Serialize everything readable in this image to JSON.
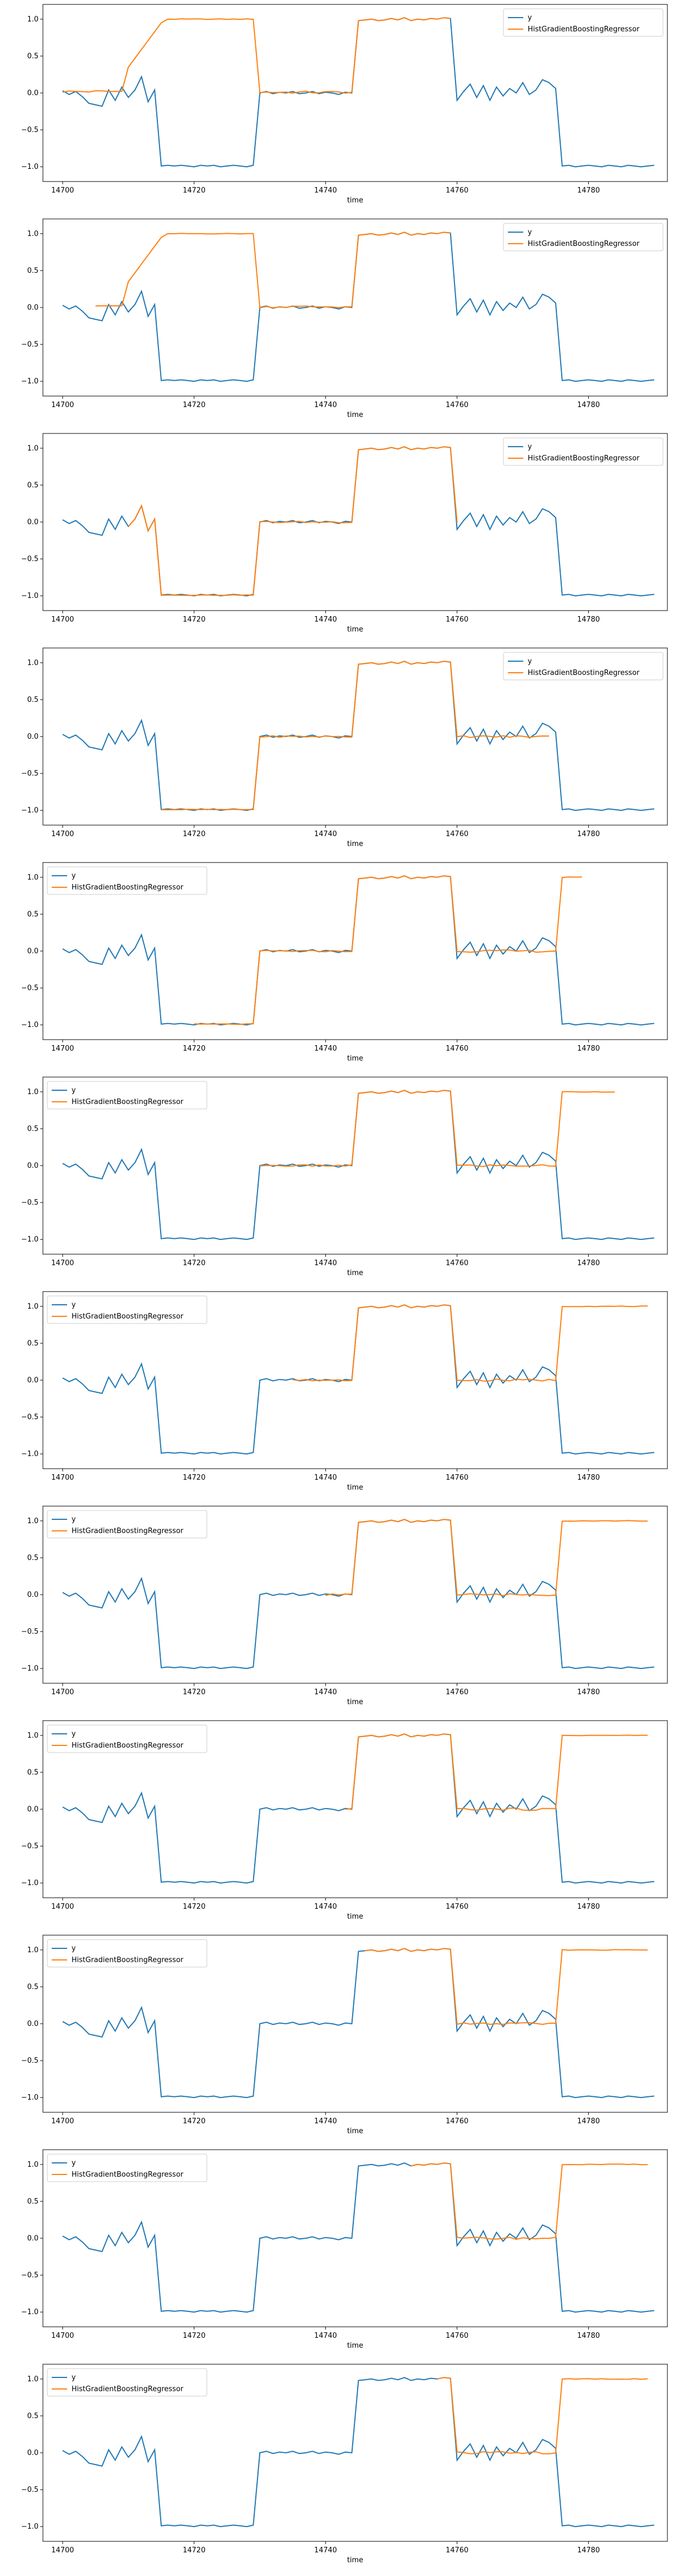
{
  "chart_data": [
    {
      "type": "line",
      "panel": 1,
      "xlabel": "time",
      "ylabel": "",
      "xlim": [
        14697,
        14792
      ],
      "ylim": [
        -1.2,
        1.2
      ],
      "legend": "top-right",
      "xticks": [
        "14700",
        "14720",
        "14740",
        "14760",
        "14780"
      ],
      "yticks": [
        "1.0",
        "0.5",
        "0.0",
        "−0.5",
        "−1.0"
      ],
      "series": [
        {
          "name": "y",
          "color": "#1f77b4"
        },
        {
          "name": "HistGradientBoostingRegressor",
          "color": "#ff7f0e",
          "x_start": 14700,
          "x_end": 14759,
          "mode": "early"
        }
      ]
    },
    {
      "type": "line",
      "panel": 2,
      "xlabel": "time",
      "ylabel": "",
      "xlim": [
        14697,
        14792
      ],
      "ylim": [
        -1.2,
        1.2
      ],
      "legend": "top-right",
      "xticks": [
        "14700",
        "14720",
        "14740",
        "14760",
        "14780"
      ],
      "yticks": [
        "1.0",
        "0.5",
        "0.0",
        "−0.5",
        "−1.0"
      ],
      "series": [
        {
          "name": "y",
          "color": "#1f77b4"
        },
        {
          "name": "HistGradientBoostingRegressor",
          "color": "#ff7f0e",
          "x_start": 14705,
          "x_end": 14759,
          "mode": "early"
        }
      ]
    },
    {
      "type": "line",
      "panel": 3,
      "xlabel": "time",
      "ylabel": "",
      "xlim": [
        14697,
        14792
      ],
      "ylim": [
        -1.2,
        1.2
      ],
      "legend": "top-right",
      "xticks": [
        "14700",
        "14720",
        "14740",
        "14760",
        "14780"
      ],
      "yticks": [
        "1.0",
        "0.5",
        "0.0",
        "−0.5",
        "−1.0"
      ],
      "series": [
        {
          "name": "y",
          "color": "#1f77b4"
        },
        {
          "name": "HistGradientBoostingRegressor",
          "color": "#ff7f0e",
          "x_start": 14710,
          "x_end": 14760,
          "mode": "follow"
        }
      ]
    },
    {
      "type": "line",
      "panel": 4,
      "xlabel": "time",
      "ylabel": "",
      "xlim": [
        14697,
        14792
      ],
      "ylim": [
        -1.2,
        1.2
      ],
      "legend": "top-right",
      "xticks": [
        "14700",
        "14720",
        "14740",
        "14760",
        "14780"
      ],
      "yticks": [
        "1.0",
        "0.5",
        "0.0",
        "−0.5",
        "−1.0"
      ],
      "series": [
        {
          "name": "y",
          "color": "#1f77b4"
        },
        {
          "name": "HistGradientBoostingRegressor",
          "color": "#ff7f0e",
          "x_start": 14715,
          "x_end": 14774,
          "mode": "follow"
        }
      ]
    },
    {
      "type": "line",
      "panel": 5,
      "xlabel": "time",
      "ylabel": "",
      "xlim": [
        14697,
        14792
      ],
      "ylim": [
        -1.2,
        1.2
      ],
      "legend": "top-left",
      "xticks": [
        "14700",
        "14720",
        "14740",
        "14760",
        "14780"
      ],
      "yticks": [
        "1.0",
        "0.5",
        "0.0",
        "−0.5",
        "−1.0"
      ],
      "series": [
        {
          "name": "y",
          "color": "#1f77b4"
        },
        {
          "name": "HistGradientBoostingRegressor",
          "color": "#ff7f0e",
          "x_start": 14720,
          "x_end": 14779,
          "mode": "follow"
        }
      ]
    },
    {
      "type": "line",
      "panel": 6,
      "xlabel": "time",
      "ylabel": "",
      "xlim": [
        14697,
        14792
      ],
      "ylim": [
        -1.2,
        1.2
      ],
      "legend": "top-left",
      "xticks": [
        "14700",
        "14720",
        "14740",
        "14760",
        "14780"
      ],
      "yticks": [
        "1.0",
        "0.5",
        "0.0",
        "−0.5",
        "−1.0"
      ],
      "series": [
        {
          "name": "y",
          "color": "#1f77b4"
        },
        {
          "name": "HistGradientBoostingRegressor",
          "color": "#ff7f0e",
          "x_start": 14730,
          "x_end": 14784,
          "mode": "follow"
        }
      ]
    },
    {
      "type": "line",
      "panel": 7,
      "xlabel": "time",
      "ylabel": "",
      "xlim": [
        14697,
        14792
      ],
      "ylim": [
        -1.2,
        1.2
      ],
      "legend": "top-left",
      "xticks": [
        "14700",
        "14720",
        "14740",
        "14760",
        "14780"
      ],
      "yticks": [
        "1.0",
        "0.5",
        "0.0",
        "−0.5",
        "−1.0"
      ],
      "series": [
        {
          "name": "y",
          "color": "#1f77b4"
        },
        {
          "name": "HistGradientBoostingRegressor",
          "color": "#ff7f0e",
          "x_start": 14735,
          "x_end": 14789,
          "mode": "follow"
        }
      ]
    },
    {
      "type": "line",
      "panel": 8,
      "xlabel": "time",
      "ylabel": "",
      "xlim": [
        14697,
        14792
      ],
      "ylim": [
        -1.2,
        1.2
      ],
      "legend": "top-left",
      "xticks": [
        "14700",
        "14720",
        "14740",
        "14760",
        "14780"
      ],
      "yticks": [
        "1.0",
        "0.5",
        "0.0",
        "−0.5",
        "−1.0"
      ],
      "series": [
        {
          "name": "y",
          "color": "#1f77b4"
        },
        {
          "name": "HistGradientBoostingRegressor",
          "color": "#ff7f0e",
          "x_start": 14740,
          "x_end": 14789,
          "mode": "follow"
        }
      ]
    },
    {
      "type": "line",
      "panel": 9,
      "xlabel": "time",
      "ylabel": "",
      "xlim": [
        14697,
        14792
      ],
      "ylim": [
        -1.2,
        1.2
      ],
      "legend": "top-left",
      "xticks": [
        "14700",
        "14720",
        "14740",
        "14760",
        "14780"
      ],
      "yticks": [
        "1.0",
        "0.5",
        "0.0",
        "−0.5",
        "−1.0"
      ],
      "series": [
        {
          "name": "y",
          "color": "#1f77b4"
        },
        {
          "name": "HistGradientBoostingRegressor",
          "color": "#ff7f0e",
          "x_start": 14743,
          "x_end": 14789,
          "mode": "follow"
        }
      ]
    },
    {
      "type": "line",
      "panel": 10,
      "xlabel": "time",
      "ylabel": "",
      "xlim": [
        14697,
        14792
      ],
      "ylim": [
        -1.2,
        1.2
      ],
      "legend": "top-left",
      "xticks": [
        "14700",
        "14720",
        "14740",
        "14760",
        "14780"
      ],
      "yticks": [
        "1.0",
        "0.5",
        "0.0",
        "−0.5",
        "−1.0"
      ],
      "series": [
        {
          "name": "y",
          "color": "#1f77b4"
        },
        {
          "name": "HistGradientBoostingRegressor",
          "color": "#ff7f0e",
          "x_start": 14746,
          "x_end": 14789,
          "mode": "follow"
        }
      ]
    },
    {
      "type": "line",
      "panel": 11,
      "xlabel": "time",
      "ylabel": "",
      "xlim": [
        14697,
        14792
      ],
      "ylim": [
        -1.2,
        1.2
      ],
      "legend": "top-left",
      "xticks": [
        "14700",
        "14720",
        "14740",
        "14760",
        "14780"
      ],
      "yticks": [
        "1.0",
        "0.5",
        "0.0",
        "−0.5",
        "−1.0"
      ],
      "series": [
        {
          "name": "y",
          "color": "#1f77b4"
        },
        {
          "name": "HistGradientBoostingRegressor",
          "color": "#ff7f0e",
          "x_start": 14753,
          "x_end": 14789,
          "mode": "follow"
        }
      ]
    },
    {
      "type": "line",
      "panel": 12,
      "xlabel": "time",
      "ylabel": "",
      "xlim": [
        14697,
        14792
      ],
      "ylim": [
        -1.2,
        1.2
      ],
      "legend": "top-left",
      "xticks": [
        "14700",
        "14720",
        "14740",
        "14760",
        "14780"
      ],
      "yticks": [
        "1.0",
        "0.5",
        "0.0",
        "−0.5",
        "−1.0"
      ],
      "series": [
        {
          "name": "y",
          "color": "#1f77b4"
        },
        {
          "name": "HistGradientBoostingRegressor",
          "color": "#ff7f0e",
          "x_start": 14757,
          "x_end": 14789,
          "mode": "follow"
        }
      ]
    }
  ],
  "y_series_values": {
    "x_start": 14700,
    "values": [
      0.03,
      -0.02,
      0.02,
      -0.05,
      -0.14,
      -0.16,
      -0.18,
      0.04,
      -0.1,
      0.08,
      -0.06,
      0.04,
      0.22,
      -0.12,
      0.04,
      -0.99,
      -0.98,
      -0.99,
      -0.98,
      -0.99,
      -1.0,
      -0.98,
      -0.99,
      -0.98,
      -1.0,
      -0.99,
      -0.98,
      -0.99,
      -1.0,
      -0.98,
      0.0,
      0.02,
      -0.01,
      0.01,
      0.0,
      0.02,
      -0.01,
      0.0,
      0.02,
      -0.01,
      0.01,
      0.0,
      -0.02,
      0.01,
      0.0,
      0.98,
      0.99,
      1.0,
      0.98,
      0.99,
      1.01,
      0.99,
      1.02,
      0.98,
      1.0,
      0.99,
      1.01,
      1.0,
      1.02,
      1.01,
      -0.1,
      0.02,
      0.12,
      -0.06,
      0.1,
      -0.1,
      0.08,
      -0.04,
      0.06,
      0.0,
      0.14,
      -0.02,
      0.04,
      0.18,
      0.14,
      0.06,
      -0.99,
      -0.98,
      -1.0,
      -0.99,
      -0.98,
      -0.99,
      -1.0,
      -0.98,
      -0.99,
      -1.0,
      -0.98,
      -0.99,
      -1.0,
      -0.99,
      -0.98
    ]
  }
}
